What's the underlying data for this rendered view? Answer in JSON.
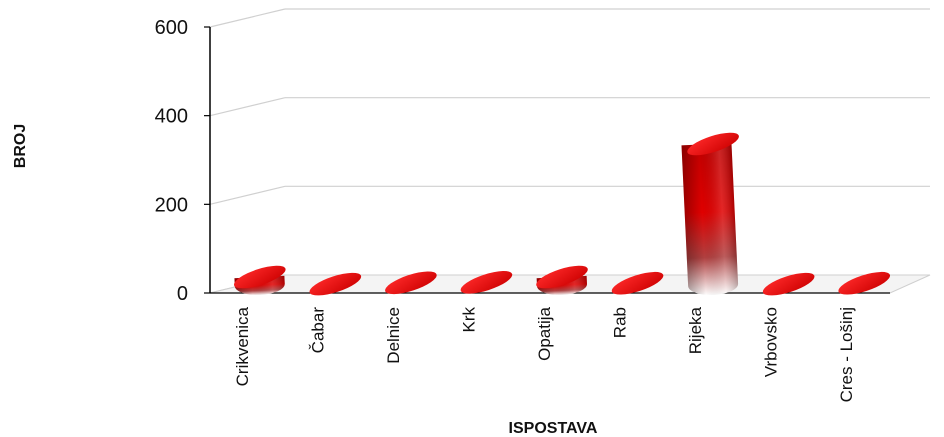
{
  "chart_data": {
    "type": "bar",
    "title": "",
    "xlabel": "ISPOSTAVA",
    "ylabel": "BROJ",
    "categories": [
      "Crikvenica",
      "Čabar",
      "Delnice",
      "Krk",
      "Opatija",
      "Rab",
      "Rijeka",
      "Vrbovsko",
      "Cres - Lošinj"
    ],
    "values": [
      18,
      2,
      5,
      6,
      18,
      4,
      318,
      2,
      4
    ],
    "ylim": [
      0,
      600
    ],
    "yticks": [
      0,
      200,
      400,
      600
    ],
    "grid": true,
    "legend": "none",
    "colors": {
      "bar_top": "#e00000",
      "bar_dark": "#b00000",
      "bar_light": "#ffffff",
      "grid": "#d0d0d0",
      "axis": "#000000"
    }
  }
}
